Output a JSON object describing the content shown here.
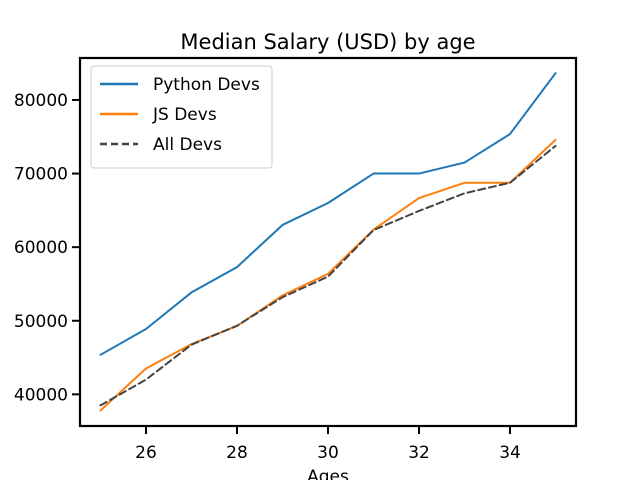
{
  "chart_data": {
    "type": "line",
    "title": "Median Salary (USD) by age",
    "xlabel": "Ages",
    "ylabel": "",
    "xlim": [
      24.55,
      35.45
    ],
    "ylim": [
      35700,
      85700
    ],
    "xticks": [
      26,
      28,
      30,
      32,
      34
    ],
    "yticks": [
      40000,
      50000,
      60000,
      70000,
      80000
    ],
    "legend_position": "top-left",
    "grid": false,
    "x": [
      25,
      26,
      27,
      28,
      29,
      30,
      31,
      32,
      33,
      34,
      35
    ],
    "series": [
      {
        "name": "Python Devs",
        "color": "#1f77b4",
        "style": "solid",
        "values": [
          45372,
          48876,
          53850,
          57287,
          63016,
          65998,
          70003,
          70000,
          71496,
          75370,
          83640
        ]
      },
      {
        "name": "JS Devs",
        "color": "#ff7f0e",
        "style": "solid",
        "values": [
          37810,
          43515,
          46823,
          49293,
          53437,
          56373,
          62375,
          66674,
          68745,
          68746,
          74583
        ]
      },
      {
        "name": "All Devs",
        "color": "#444444",
        "style": "dashed",
        "values": [
          38496,
          42000,
          46752,
          49320,
          53200,
          56000,
          62316,
          64928,
          67317,
          68748,
          73752
        ]
      }
    ]
  }
}
